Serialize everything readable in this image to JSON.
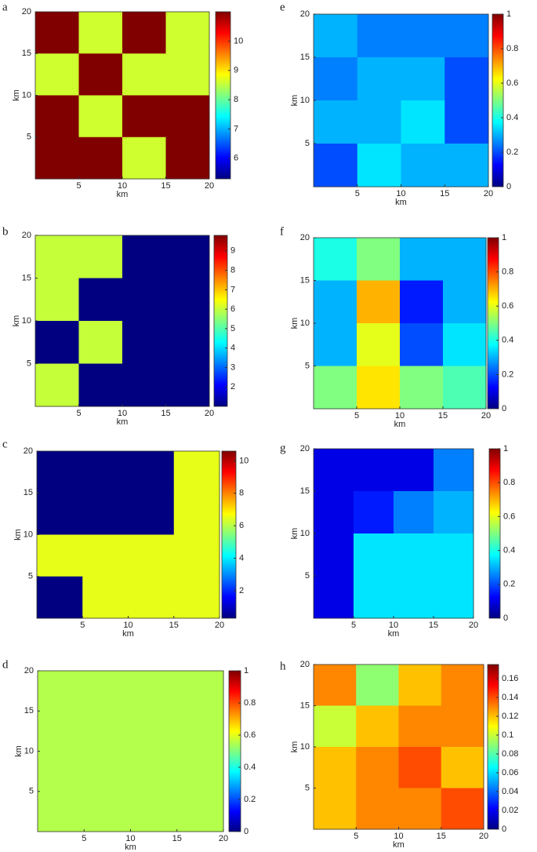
{
  "chart_data": [
    {
      "type": "heatmap",
      "title": "a",
      "xlabel": "km",
      "ylabel": "km",
      "xlim": [
        0,
        20
      ],
      "ylim": [
        0,
        20
      ],
      "xticks": [
        5,
        10,
        15,
        20
      ],
      "yticks": [
        5,
        10,
        15,
        20
      ],
      "clim": [
        5.3,
        11
      ],
      "cticks": [
        6,
        7,
        8,
        9,
        10
      ],
      "values": [
        [
          11,
          8.6,
          11,
          8.6
        ],
        [
          8.6,
          11,
          8.6,
          8.6
        ],
        [
          11,
          8.6,
          11,
          11
        ],
        [
          11,
          11,
          8.6,
          11
        ]
      ]
    },
    {
      "type": "heatmap",
      "title": "b",
      "xlabel": "km",
      "ylabel": "km",
      "xlim": [
        0,
        20
      ],
      "ylim": [
        0,
        20
      ],
      "xticks": [
        5,
        10,
        15,
        20
      ],
      "yticks": [
        5,
        10,
        15,
        20
      ],
      "clim": [
        1,
        9.8
      ],
      "cticks": [
        2,
        3,
        4,
        5,
        6,
        7,
        8,
        9
      ],
      "values": [
        [
          6,
          6,
          1,
          1
        ],
        [
          6,
          1,
          1,
          1
        ],
        [
          1,
          6,
          1,
          1
        ],
        [
          6,
          1,
          1,
          1
        ]
      ]
    },
    {
      "type": "heatmap",
      "title": "c",
      "xlabel": "km",
      "ylabel": "km",
      "xlim": [
        0,
        20
      ],
      "ylim": [
        0,
        20
      ],
      "xticks": [
        5,
        10,
        15,
        20
      ],
      "yticks": [
        5,
        10,
        15,
        20
      ],
      "clim": [
        0.3,
        10.6
      ],
      "cticks": [
        2,
        4,
        6,
        8,
        10
      ],
      "values": [
        [
          0.3,
          0.3,
          0.3,
          6.5
        ],
        [
          0.3,
          0.3,
          0.3,
          6.5
        ],
        [
          6.5,
          6.5,
          6.5,
          6.5
        ],
        [
          0.3,
          6.5,
          6.5,
          6.5
        ]
      ]
    },
    {
      "type": "heatmap",
      "title": "d",
      "xlabel": "km",
      "ylabel": "km",
      "xlim": [
        0,
        20
      ],
      "ylim": [
        0,
        20
      ],
      "xticks": [
        5,
        10,
        15,
        20
      ],
      "yticks": [
        5,
        10,
        15,
        20
      ],
      "clim": [
        0,
        1
      ],
      "cticks": [
        0,
        0.2,
        0.4,
        0.6,
        0.8,
        1
      ],
      "values": [
        [
          0.55,
          0.55,
          0.55,
          0.55
        ],
        [
          0.55,
          0.55,
          0.55,
          0.55
        ],
        [
          0.55,
          0.55,
          0.55,
          0.55
        ],
        [
          0.55,
          0.55,
          0.55,
          0.55
        ]
      ]
    },
    {
      "type": "heatmap",
      "title": "e",
      "xlabel": "km",
      "ylabel": "km",
      "xlim": [
        0,
        20
      ],
      "ylim": [
        0,
        20
      ],
      "xticks": [
        5,
        10,
        15,
        20
      ],
      "yticks": [
        5,
        10,
        15,
        20
      ],
      "clim": [
        0,
        1
      ],
      "cticks": [
        0,
        0.2,
        0.4,
        0.6,
        0.8,
        1
      ],
      "values": [
        [
          0.3,
          0.25,
          0.25,
          0.25
        ],
        [
          0.25,
          0.3,
          0.3,
          0.2
        ],
        [
          0.3,
          0.3,
          0.35,
          0.2
        ],
        [
          0.2,
          0.35,
          0.3,
          0.3
        ]
      ]
    },
    {
      "type": "heatmap",
      "title": "f",
      "xlabel": "km",
      "ylabel": "km",
      "xlim": [
        0,
        20
      ],
      "ylim": [
        0,
        20
      ],
      "xticks": [
        5,
        10,
        15,
        20
      ],
      "yticks": [
        5,
        10,
        15,
        20
      ],
      "clim": [
        0,
        1
      ],
      "cticks": [
        0,
        0.2,
        0.4,
        0.6,
        0.8,
        1
      ],
      "values": [
        [
          0.4,
          0.5,
          0.3,
          0.3
        ],
        [
          0.3,
          0.7,
          0.15,
          0.3
        ],
        [
          0.3,
          0.6,
          0.2,
          0.35
        ],
        [
          0.5,
          0.65,
          0.5,
          0.45
        ]
      ]
    },
    {
      "type": "heatmap",
      "title": "g",
      "xlabel": "km",
      "ylabel": "km",
      "xlim": [
        0,
        20
      ],
      "ylim": [
        0,
        20
      ],
      "xticks": [
        5,
        10,
        15,
        20
      ],
      "yticks": [
        5,
        10,
        15,
        20
      ],
      "clim": [
        0,
        1
      ],
      "cticks": [
        0,
        0.2,
        0.4,
        0.6,
        0.8,
        1
      ],
      "values": [
        [
          0.1,
          0.1,
          0.1,
          0.25
        ],
        [
          0.1,
          0.15,
          0.25,
          0.3
        ],
        [
          0.1,
          0.35,
          0.35,
          0.35
        ],
        [
          0.1,
          0.35,
          0.35,
          0.35
        ]
      ]
    },
    {
      "type": "heatmap",
      "title": "h",
      "xlabel": "km",
      "ylabel": "km",
      "xlim": [
        0,
        20
      ],
      "ylim": [
        0,
        20
      ],
      "xticks": [
        5,
        10,
        15,
        20
      ],
      "yticks": [
        5,
        10,
        15,
        20
      ],
      "clim": [
        0,
        0.175
      ],
      "cticks": [
        0,
        0.02,
        0.04,
        0.06,
        0.08,
        0.1,
        0.12,
        0.14,
        0.16
      ],
      "values": [
        [
          0.13,
          0.09,
          0.12,
          0.13
        ],
        [
          0.1,
          0.12,
          0.13,
          0.13
        ],
        [
          0.12,
          0.13,
          0.14,
          0.12
        ],
        [
          0.12,
          0.13,
          0.13,
          0.14
        ]
      ]
    }
  ]
}
